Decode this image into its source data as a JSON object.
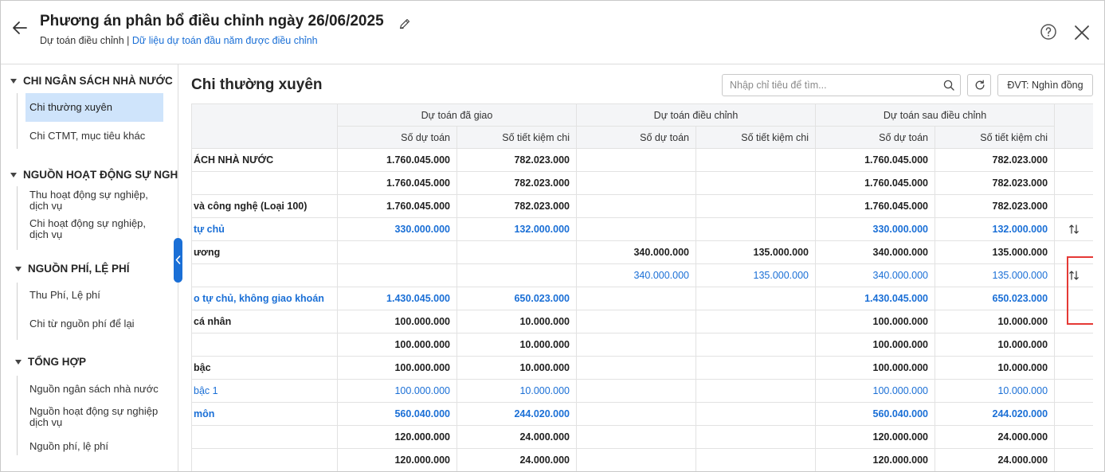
{
  "header": {
    "title": "Phương án phân bổ điều chỉnh ngày 26/06/2025",
    "subtitle_prefix": "Dự toán điều chỉnh |",
    "subtitle_link": "Dữ liệu dự toán đầu năm được điều chỉnh"
  },
  "sidebar": {
    "groups": [
      {
        "label": "CHI NGÂN SÁCH NHÀ NƯỚC",
        "items": [
          {
            "label": "Chi thường xuyên"
          },
          {
            "label": "Chi CTMT, mục tiêu khác"
          }
        ]
      },
      {
        "label": "NGUỒN HOẠT ĐỘNG SỰ NGH",
        "items": [
          {
            "label": "Thu hoạt động sự nghiệp, dịch vụ"
          },
          {
            "label": "Chi hoạt động sự nghiệp, dịch vụ"
          }
        ]
      },
      {
        "label": "NGUỒN PHÍ, LỆ PHÍ",
        "items": [
          {
            "label": "Thu Phí, Lệ phí"
          },
          {
            "label": "Chi từ nguồn phí để lại"
          }
        ]
      },
      {
        "label": "TỔNG HỢP",
        "items": [
          {
            "label": "Nguồn ngân sách nhà nước"
          },
          {
            "label": "Nguồn hoạt động sự nghiệp dịch vụ"
          },
          {
            "label": "Nguồn phí, lệ phí"
          }
        ]
      }
    ]
  },
  "main": {
    "title": "Chi thường xuyên",
    "search_placeholder": "Nhập chỉ tiêu để tìm...",
    "unit_label": "ĐVT: Nghìn đồng"
  },
  "table": {
    "group_headers": [
      "Dự toán đã giao",
      "Dự toán điều chỉnh",
      "Dự toán sau điều chỉnh"
    ],
    "sub_headers": [
      "Số dự toán",
      "Số tiết kiệm chi",
      "Số dự toán",
      "Số tiết kiệm chi",
      "Số dự toán",
      "Số tiết kiệm chi"
    ],
    "rows": [
      {
        "name": "ÁCH NHÀ NƯỚC",
        "style": "bold",
        "cells": [
          "1.760.045.000",
          "782.023.000",
          "",
          "",
          "1.760.045.000",
          "782.023.000"
        ],
        "sort": false
      },
      {
        "name": "",
        "style": "bold",
        "cells": [
          "1.760.045.000",
          "782.023.000",
          "",
          "",
          "1.760.045.000",
          "782.023.000"
        ],
        "sort": false
      },
      {
        "name": "và công nghệ (Loại 100)",
        "style": "bold",
        "cells": [
          "1.760.045.000",
          "782.023.000",
          "",
          "",
          "1.760.045.000",
          "782.023.000"
        ],
        "sort": false
      },
      {
        "name": "tự chủ",
        "style": "bold blue",
        "cells": [
          "330.000.000",
          "132.000.000",
          "",
          "",
          "330.000.000",
          "132.000.000"
        ],
        "sort": true
      },
      {
        "name": "ương",
        "style": "bold",
        "cells": [
          "",
          "",
          "340.000.000",
          "135.000.000",
          "340.000.000",
          "135.000.000"
        ],
        "sort": false
      },
      {
        "name": "",
        "style": "blue",
        "cells": [
          "",
          "",
          "340.000.000",
          "135.000.000",
          "340.000.000",
          "135.000.000"
        ],
        "sort": true
      },
      {
        "name": "o tự chủ, không giao khoán",
        "style": "bold blue",
        "cells": [
          "1.430.045.000",
          "650.023.000",
          "",
          "",
          "1.430.045.000",
          "650.023.000"
        ],
        "sort": false
      },
      {
        "name": "cá nhân",
        "style": "bold",
        "cells": [
          "100.000.000",
          "10.000.000",
          "",
          "",
          "100.000.000",
          "10.000.000"
        ],
        "sort": false
      },
      {
        "name": "",
        "style": "bold",
        "cells": [
          "100.000.000",
          "10.000.000",
          "",
          "",
          "100.000.000",
          "10.000.000"
        ],
        "sort": false
      },
      {
        "name": "bậc",
        "style": "bold",
        "cells": [
          "100.000.000",
          "10.000.000",
          "",
          "",
          "100.000.000",
          "10.000.000"
        ],
        "sort": false
      },
      {
        "name": "bậc 1",
        "style": "blue",
        "cells": [
          "100.000.000",
          "10.000.000",
          "",
          "",
          "100.000.000",
          "10.000.000"
        ],
        "sort": false
      },
      {
        "name": "môn",
        "style": "bold blue",
        "cells": [
          "560.040.000",
          "244.020.000",
          "",
          "",
          "560.040.000",
          "244.020.000"
        ],
        "sort": false
      },
      {
        "name": "",
        "style": "bold",
        "cells": [
          "120.000.000",
          "24.000.000",
          "",
          "",
          "120.000.000",
          "24.000.000"
        ],
        "sort": false
      },
      {
        "name": "",
        "style": "bold",
        "cells": [
          "120.000.000",
          "24.000.000",
          "",
          "",
          "120.000.000",
          "24.000.000"
        ],
        "sort": false
      }
    ]
  },
  "colors": {
    "accent": "#1a6fd6",
    "active_bg": "#cfe4fb",
    "highlight_border": "#e53935"
  }
}
